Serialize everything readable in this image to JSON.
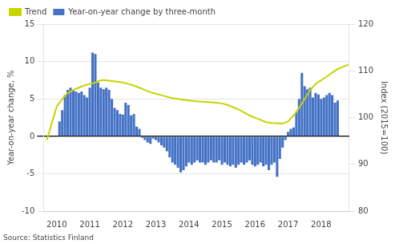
{
  "chart_data": {
    "type": "bar",
    "ylabel": "Year-on-year change, %",
    "y2label": "Index (2015=100)",
    "annotations": [
      "Source: Statistics Finland"
    ],
    "xlim": [
      2009.6,
      2018.85
    ],
    "xticks": [
      2010,
      2011,
      2012,
      2013,
      2014,
      2015,
      2016,
      2017,
      2018
    ],
    "ylim": [
      -10,
      15
    ],
    "yticks": [
      -10,
      -5,
      0,
      5,
      10,
      15
    ],
    "y2lim": [
      80,
      120
    ],
    "y2ticks": [
      80,
      90,
      100,
      110,
      120
    ],
    "grid": true,
    "legend": "upper left",
    "series": [
      {
        "name": "Trend",
        "type": "line",
        "color": "#C8D400",
        "x": [
          2009.7,
          2009.9,
          2010.0,
          2010.17,
          2010.33,
          2010.5,
          2010.67,
          2010.83,
          2011.0,
          2011.17,
          2011.33,
          2011.5,
          2011.67,
          2011.83,
          2012.0,
          2012.17,
          2012.33,
          2012.5,
          2012.67,
          2012.83,
          2013.0,
          2013.17,
          2013.33,
          2013.5,
          2013.67,
          2013.83,
          2014.0,
          2014.17,
          2014.33,
          2014.5,
          2014.67,
          2014.83,
          2015.0,
          2015.17,
          2015.33,
          2015.5,
          2015.67,
          2015.83,
          2016.0,
          2016.17,
          2016.33,
          2016.5,
          2016.67,
          2016.83,
          2017.0,
          2017.17,
          2017.33,
          2017.5,
          2017.67,
          2017.83,
          2018.0,
          2018.17,
          2018.33,
          2018.5,
          2018.67,
          2018.83
        ],
        "values": [
          -0.5,
          2.5,
          4.0,
          5.0,
          5.8,
          6.2,
          6.5,
          6.8,
          7.0,
          7.2,
          7.5,
          7.5,
          7.4,
          7.3,
          7.2,
          7.0,
          6.8,
          6.5,
          6.2,
          5.9,
          5.7,
          5.5,
          5.3,
          5.1,
          5.0,
          4.9,
          4.8,
          4.7,
          4.65,
          4.6,
          4.55,
          4.5,
          4.4,
          4.2,
          3.9,
          3.6,
          3.2,
          2.8,
          2.5,
          2.2,
          1.9,
          1.8,
          1.75,
          1.7,
          2.0,
          2.8,
          3.8,
          5.0,
          6.2,
          7.0,
          7.5,
          8.0,
          8.5,
          9.0,
          9.3,
          9.6
        ]
      },
      {
        "name": "Year-on-year change by three-month",
        "type": "bar",
        "color": "#4472C4",
        "x": [
          2010.083,
          2010.167,
          2010.25,
          2010.333,
          2010.417,
          2010.5,
          2010.583,
          2010.667,
          2010.75,
          2010.833,
          2010.917,
          2011.0,
          2011.083,
          2011.167,
          2011.25,
          2011.333,
          2011.417,
          2011.5,
          2011.583,
          2011.667,
          2011.75,
          2011.833,
          2011.917,
          2012.0,
          2012.083,
          2012.167,
          2012.25,
          2012.333,
          2012.417,
          2012.5,
          2012.583,
          2012.667,
          2012.75,
          2012.833,
          2012.917,
          2013.0,
          2013.083,
          2013.167,
          2013.25,
          2013.333,
          2013.417,
          2013.5,
          2013.583,
          2013.667,
          2013.75,
          2013.833,
          2013.917,
          2014.0,
          2014.083,
          2014.167,
          2014.25,
          2014.333,
          2014.417,
          2014.5,
          2014.583,
          2014.667,
          2014.75,
          2014.833,
          2014.917,
          2015.0,
          2015.083,
          2015.167,
          2015.25,
          2015.333,
          2015.417,
          2015.5,
          2015.583,
          2015.667,
          2015.75,
          2015.833,
          2015.917,
          2016.0,
          2016.083,
          2016.167,
          2016.25,
          2016.333,
          2016.417,
          2016.5,
          2016.583,
          2016.667,
          2016.75,
          2016.833,
          2016.917,
          2017.0,
          2017.083,
          2017.167,
          2017.25,
          2017.333,
          2017.417,
          2017.5,
          2017.583,
          2017.667,
          2017.75,
          2017.833,
          2017.917,
          2018.0,
          2018.083,
          2018.167,
          2018.25,
          2018.333,
          2018.417,
          2018.5
        ],
        "values": [
          2.0,
          3.5,
          5.5,
          6.2,
          6.5,
          6.2,
          6.0,
          5.8,
          6.0,
          5.5,
          5.2,
          6.5,
          11.2,
          11.0,
          7.2,
          6.5,
          6.3,
          6.5,
          6.2,
          5.0,
          3.8,
          3.5,
          3.0,
          2.9,
          4.5,
          4.2,
          2.8,
          3.0,
          1.3,
          1.0,
          -0.2,
          -0.5,
          -0.8,
          -1.0,
          -0.3,
          -0.5,
          -0.8,
          -1.2,
          -1.5,
          -2.0,
          -2.8,
          -3.5,
          -3.8,
          -4.2,
          -4.8,
          -4.5,
          -4.0,
          -3.5,
          -3.8,
          -3.5,
          -3.2,
          -3.5,
          -3.5,
          -3.8,
          -3.5,
          -3.2,
          -3.5,
          -3.5,
          -3.2,
          -3.8,
          -3.5,
          -3.8,
          -4.0,
          -3.8,
          -4.2,
          -3.8,
          -3.5,
          -3.8,
          -3.5,
          -3.2,
          -3.8,
          -4.0,
          -3.8,
          -3.5,
          -4.0,
          -3.8,
          -4.5,
          -3.8,
          -3.5,
          -5.4,
          -3.0,
          -1.5,
          -0.5,
          0.6,
          1.0,
          1.2,
          3.3,
          5.0,
          8.5,
          6.7,
          6.3,
          6.5,
          5.2,
          5.8,
          5.6,
          5.0,
          5.2,
          5.5,
          5.8,
          5.5,
          4.5,
          4.8
        ]
      }
    ]
  }
}
